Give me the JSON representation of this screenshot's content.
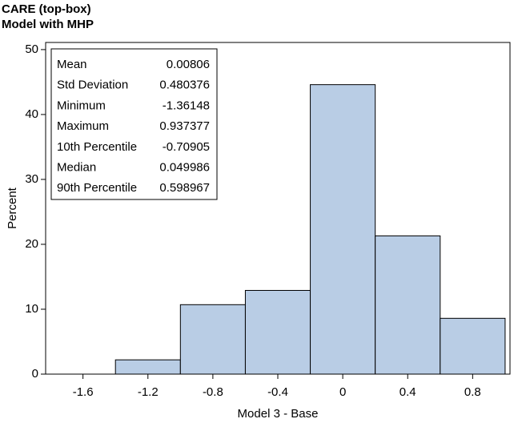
{
  "chart_data": {
    "type": "histogram",
    "title": "CARE (top-box)",
    "subtitle": "Model with MHP",
    "x_label": "Model 3 - Base",
    "y_label": "Percent",
    "bins": [
      -1.4,
      -1.0,
      -0.6,
      -0.2,
      0.2,
      0.6,
      1.0
    ],
    "values": [
      2.2,
      10.7,
      12.9,
      44.6,
      21.3,
      8.6
    ],
    "color": "#b9cde5",
    "xlim": [
      -1.83,
      1.03
    ],
    "xticks": [
      -1.6,
      -1.2,
      -0.8,
      -0.4,
      0,
      0.4,
      0.8
    ],
    "ylim": [
      0,
      51.1
    ],
    "yticks": [
      0,
      10,
      20,
      30,
      40,
      50
    ],
    "stats": [
      {
        "label": "Mean",
        "value": 0.00806
      },
      {
        "label": "Std Deviation",
        "value": 0.480376
      },
      {
        "label": "Minimum",
        "value": -1.36148
      },
      {
        "label": "Maximum",
        "value": 0.937377
      },
      {
        "label": "10th Percentile",
        "value": -0.70905
      },
      {
        "label": "Median",
        "value": 0.049986
      },
      {
        "label": "90th Percentile",
        "value": 0.598967
      }
    ]
  }
}
